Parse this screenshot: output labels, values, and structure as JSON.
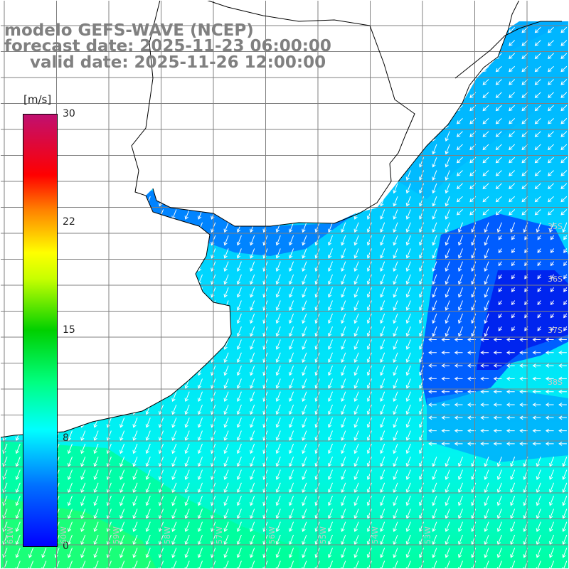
{
  "titles": {
    "line1": "modelo GEFS-WAVE (NCEP)",
    "line2": "forecast date: 2025-11-23 06:00:00",
    "line3": "valid date: 2025-11-26 12:00:00"
  },
  "colorbar": {
    "unit": "[m/s]",
    "ticks": [
      "30",
      "22",
      "15",
      "8",
      "0"
    ],
    "colors": [
      "#0000ff",
      "#0066ff",
      "#00ccff",
      "#00ffff",
      "#00ff00",
      "#ffff00",
      "#ff8000",
      "#ff0000",
      "#ff00b0",
      "#c0106e"
    ]
  },
  "map": {
    "lat_labels": [
      "35S",
      "36S",
      "37S",
      "38S"
    ],
    "lon_labels": [
      "61W",
      "60W",
      "59W",
      "58W",
      "57W",
      "56W",
      "55W",
      "54W",
      "53W"
    ],
    "land_color": "#ffffff",
    "grid_color": "#808080",
    "arrow_color": "#ffffff",
    "wind_colors": {
      "deep_blue": "#0033ee",
      "blue": "#0066ff",
      "light_blue": "#00aaff",
      "cyan": "#00ddff",
      "aqua": "#00ffee",
      "green": "#00ff88"
    }
  }
}
